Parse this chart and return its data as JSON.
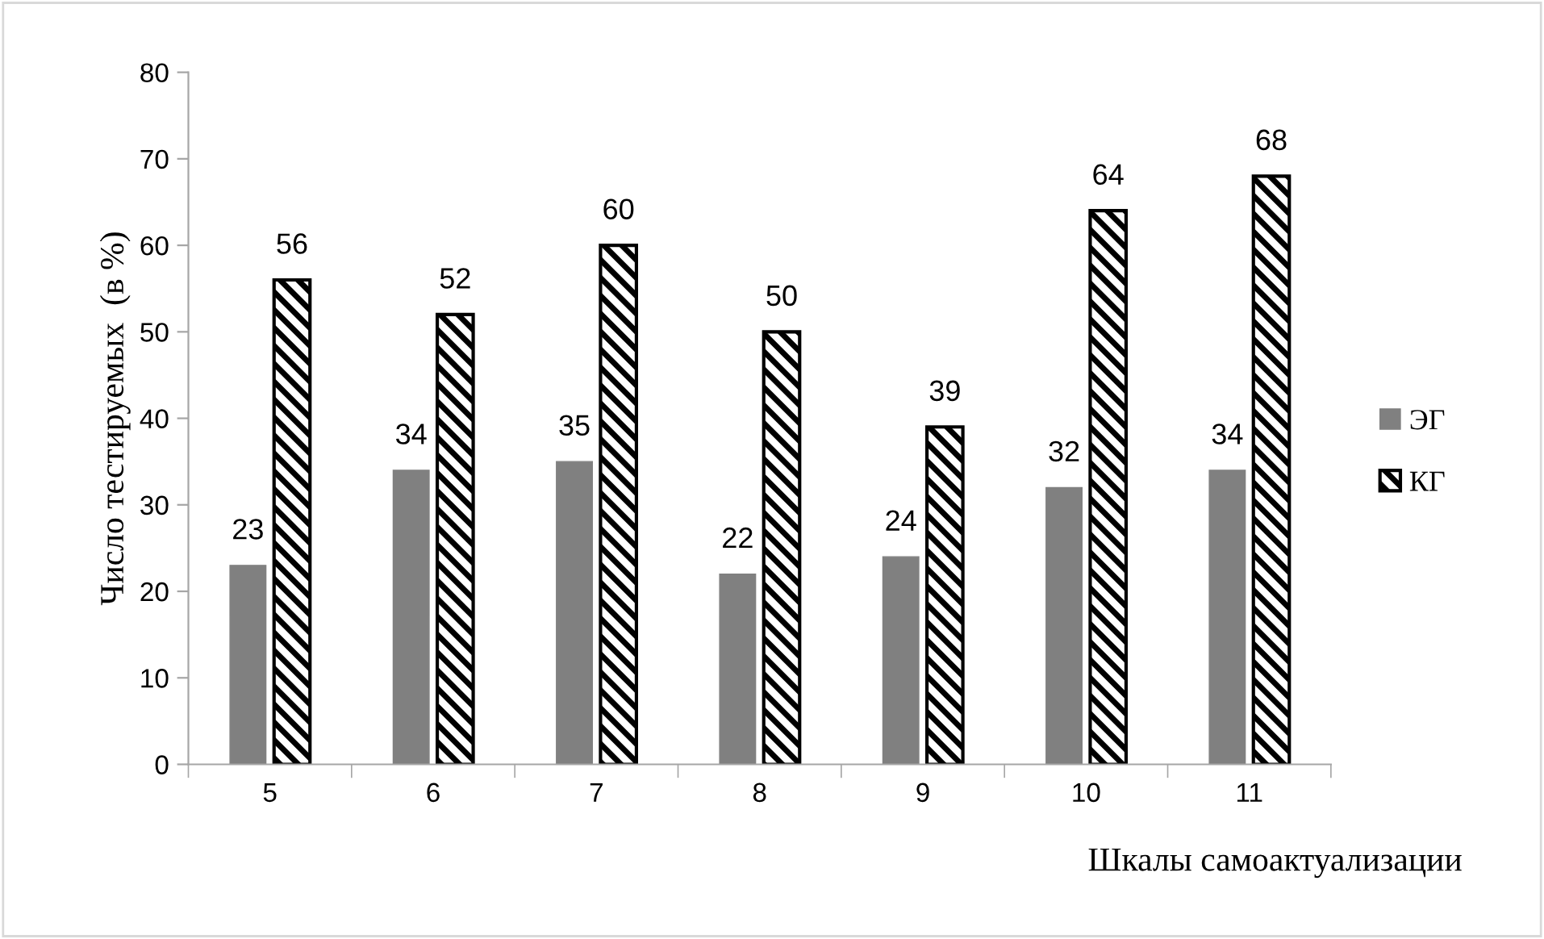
{
  "chart_data": {
    "type": "bar",
    "xlabel": "Шкалы самоактуализации",
    "ylabel": "Число тестируемых  (в %)",
    "categories": [
      "5",
      "6",
      "7",
      "8",
      "9",
      "10",
      "11"
    ],
    "series": [
      {
        "name": "ЭГ",
        "color": "#808080",
        "values": [
          23,
          34,
          35,
          22,
          24,
          32,
          34
        ]
      },
      {
        "name": "КГ",
        "color": "#000000",
        "values": [
          56,
          52,
          60,
          50,
          39,
          64,
          68
        ]
      }
    ],
    "ylim": [
      0,
      80
    ],
    "yticks": [
      0,
      10,
      20,
      30,
      40,
      50,
      60,
      70,
      80
    ],
    "data_labels": true,
    "grid": false,
    "legend": "right"
  }
}
